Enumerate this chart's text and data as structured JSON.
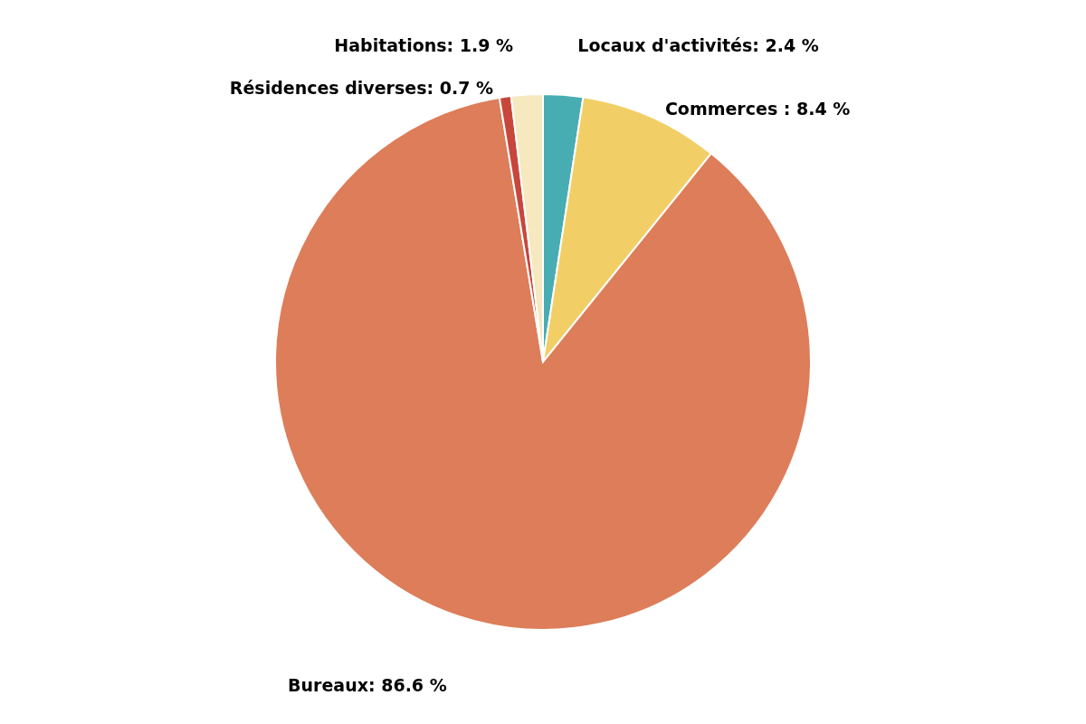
{
  "chart_data": {
    "type": "pie",
    "categories": [
      "Locaux d'activités",
      "Commerces ",
      "Bureaux",
      "Résidences diverses",
      "Habitations"
    ],
    "values": [
      2.4,
      8.4,
      86.6,
      0.7,
      1.9
    ],
    "value_labels": [
      "2.4 %",
      "8.4 %",
      "86.6 %",
      "0.7 %",
      "1.9 %"
    ],
    "colors": [
      "#48adb3",
      "#f2cf66",
      "#dd7d59",
      "#c9463d",
      "#f6e8bf"
    ]
  }
}
